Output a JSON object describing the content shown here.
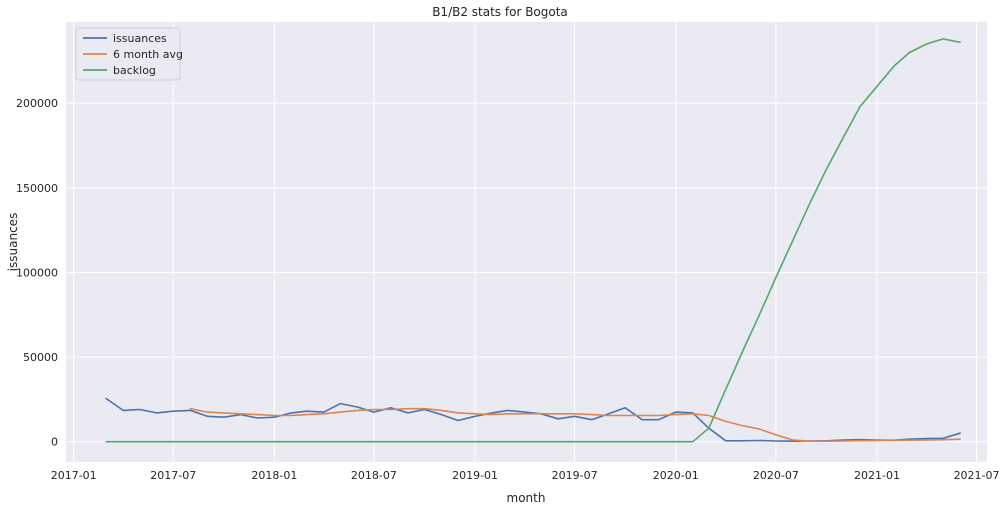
{
  "chart_data": {
    "type": "line",
    "title": "B1/B2 stats for Bogota",
    "xlabel": "month",
    "ylabel": "issuances",
    "xlim": [
      "2016-12-18",
      "2021-07-20"
    ],
    "ylim": [
      -12000,
      248000
    ],
    "x_ticks": [
      "2017-01",
      "2017-07",
      "2018-01",
      "2018-07",
      "2019-01",
      "2019-07",
      "2020-01",
      "2020-07",
      "2021-01",
      "2021-07"
    ],
    "y_ticks": [
      0,
      50000,
      100000,
      150000,
      200000
    ],
    "grid": true,
    "legend_position": "top-left",
    "background": "#eaeaf2",
    "x": [
      "2017-03",
      "2017-04",
      "2017-05",
      "2017-06",
      "2017-07",
      "2017-08",
      "2017-09",
      "2017-10",
      "2017-11",
      "2017-12",
      "2018-01",
      "2018-02",
      "2018-03",
      "2018-04",
      "2018-05",
      "2018-06",
      "2018-07",
      "2018-08",
      "2018-09",
      "2018-10",
      "2018-11",
      "2018-12",
      "2019-01",
      "2019-02",
      "2019-03",
      "2019-04",
      "2019-05",
      "2019-06",
      "2019-07",
      "2019-08",
      "2019-09",
      "2019-10",
      "2019-11",
      "2019-12",
      "2020-01",
      "2020-02",
      "2020-03",
      "2020-04",
      "2020-05",
      "2020-06",
      "2020-07",
      "2020-08",
      "2020-09",
      "2020-10",
      "2020-11",
      "2020-12",
      "2021-01",
      "2021-02",
      "2021-03",
      "2021-04",
      "2021-05",
      "2021-06"
    ],
    "series": [
      {
        "name": "issuances",
        "color": "#4c72b0",
        "values": [
          25500,
          18500,
          19000,
          17000,
          18000,
          18500,
          15000,
          14500,
          16000,
          14000,
          14500,
          17000,
          18000,
          17500,
          22500,
          20500,
          17500,
          20000,
          17000,
          19000,
          16000,
          12500,
          15000,
          17000,
          18500,
          17500,
          16500,
          13500,
          15000,
          13000,
          16500,
          20000,
          13000,
          13000,
          17500,
          17000,
          8000,
          500,
          500,
          700,
          400,
          300,
          400,
          500,
          1000,
          1200,
          1000,
          900,
          1500,
          1800,
          2000,
          5000
        ]
      },
      {
        "name": "6 month avg",
        "color": "#dd8452",
        "values": [
          null,
          null,
          null,
          null,
          null,
          19500,
          17500,
          17000,
          16500,
          16000,
          15500,
          15500,
          16000,
          16500,
          17500,
          18500,
          19000,
          19000,
          19500,
          19500,
          18500,
          17000,
          16500,
          16000,
          16500,
          16500,
          16500,
          16500,
          16500,
          16000,
          15500,
          15500,
          15500,
          15500,
          16000,
          16500,
          15500,
          12000,
          9500,
          7500,
          4000,
          1000,
          300,
          300,
          400,
          600,
          700,
          800,
          900,
          1000,
          1200,
          1500
        ]
      },
      {
        "name": "backlog",
        "color": "#55a868",
        "values": [
          0,
          0,
          0,
          0,
          0,
          0,
          0,
          0,
          0,
          0,
          0,
          0,
          0,
          0,
          0,
          0,
          0,
          0,
          0,
          0,
          0,
          0,
          0,
          0,
          0,
          0,
          0,
          0,
          0,
          0,
          0,
          0,
          0,
          0,
          0,
          0,
          8000,
          31000,
          53000,
          75000,
          97000,
          119000,
          141000,
          161000,
          180000,
          198000,
          210000,
          222000,
          230000,
          235000,
          238000,
          236000
        ]
      }
    ]
  }
}
